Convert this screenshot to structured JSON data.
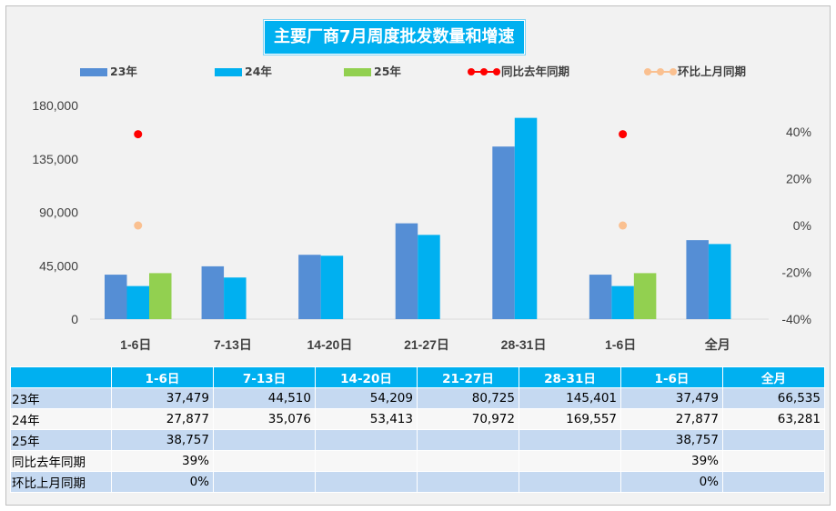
{
  "title": "主要厂商7月周度批发数量和增速",
  "colors": {
    "s23": "#558ed5",
    "s24": "#00b0f0",
    "s25": "#92d050",
    "yoy": "#ff0000",
    "mom": "#fac090",
    "header": "#00b0f0"
  },
  "legend": {
    "s23": "23年",
    "s24": "24年",
    "s25": "25年",
    "yoy": "同比去年同期",
    "mom": "环比上月同期"
  },
  "chart_data": {
    "type": "bar",
    "title": "主要厂商7月周度批发数量和增速",
    "categories": [
      "1-6日",
      "7-13日",
      "14-20日",
      "21-27日",
      "28-31日",
      "1-6日",
      "全月"
    ],
    "series": [
      {
        "name": "23年",
        "values": [
          37479,
          44510,
          54209,
          80725,
          145401,
          37479,
          66535
        ]
      },
      {
        "name": "24年",
        "values": [
          27877,
          35076,
          53413,
          70972,
          169557,
          27877,
          63281
        ]
      },
      {
        "name": "25年",
        "values": [
          38757,
          null,
          null,
          null,
          null,
          38757,
          null
        ]
      }
    ],
    "line_series": [
      {
        "name": "同比去年同期",
        "axis": "right",
        "values": [
          39,
          null,
          null,
          null,
          null,
          39,
          null
        ]
      },
      {
        "name": "环比上月同期",
        "axis": "right",
        "values": [
          0,
          null,
          null,
          null,
          null,
          0,
          null
        ]
      }
    ],
    "ylim": [
      0,
      180000
    ],
    "yticks": [
      "180,000",
      "135,000",
      "90,000",
      "45,000",
      "0"
    ],
    "yticks_values": [
      180000,
      135000,
      90000,
      45000,
      0
    ],
    "y2lim": [
      -40,
      40
    ],
    "y2ticks": [
      "40%",
      "20%",
      "0%",
      "-20%",
      "-40%"
    ],
    "y2ticks_values": [
      40,
      20,
      0,
      -20,
      -40
    ],
    "legend_position": "top"
  },
  "table": {
    "headers": [
      "",
      "1-6日",
      "7-13日",
      "14-20日",
      "21-27日",
      "28-31日",
      "1-6日",
      "全月"
    ],
    "rows": [
      {
        "label": "23年",
        "cells": [
          "37,479",
          "44,510",
          "54,209",
          "80,725",
          "145,401",
          "37,479",
          "66,535"
        ],
        "style": "blue"
      },
      {
        "label": "24年",
        "cells": [
          "27,877",
          "35,076",
          "53,413",
          "70,972",
          "169,557",
          "27,877",
          "63,281"
        ],
        "style": "white"
      },
      {
        "label": "25年",
        "cells": [
          "38,757",
          "",
          "",
          "",
          "",
          "38,757",
          ""
        ],
        "style": "blue"
      },
      {
        "label": "同比去年同期",
        "cells": [
          "39%",
          "",
          "",
          "",
          "",
          "39%",
          ""
        ],
        "style": "white"
      },
      {
        "label": "环比上月同期",
        "cells": [
          "0%",
          "",
          "",
          "",
          "",
          "0%",
          ""
        ],
        "style": "blue"
      }
    ]
  }
}
